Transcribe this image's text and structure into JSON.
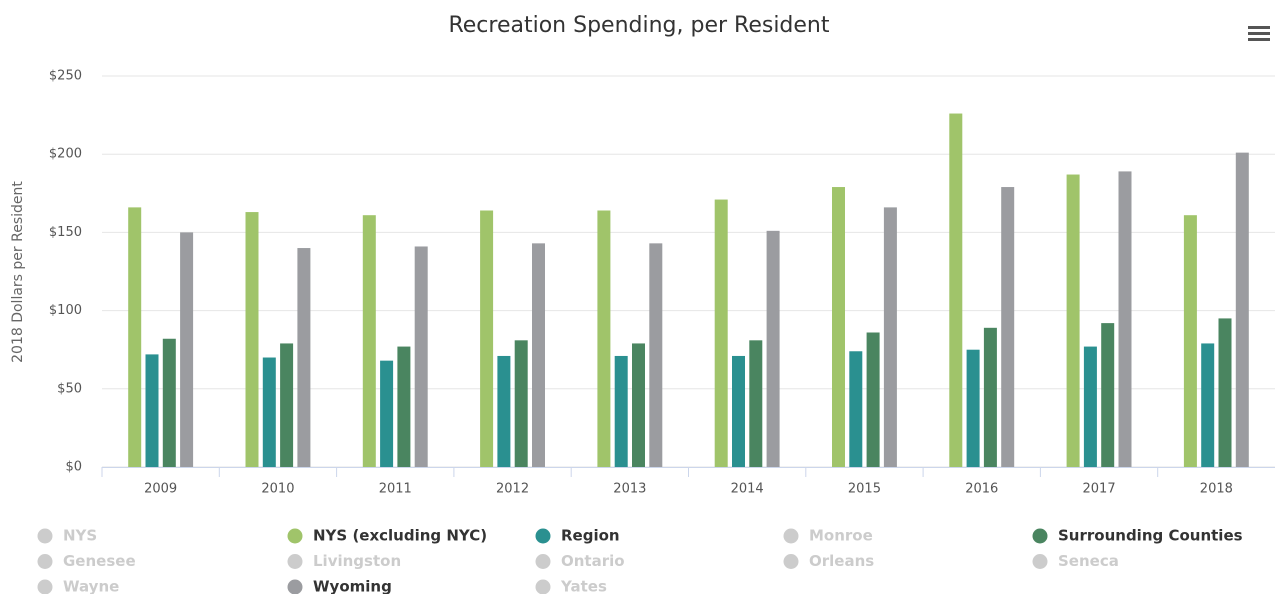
{
  "chart_data": {
    "type": "bar",
    "title": "Recreation Spending, per Resident",
    "y_label": "2018 Dollars per Resident",
    "categories": [
      "2009",
      "2010",
      "2011",
      "2012",
      "2013",
      "2014",
      "2015",
      "2016",
      "2017",
      "2018"
    ],
    "ylim": [
      0,
      250
    ],
    "yticks": [
      {
        "value": 0,
        "label": "$0"
      },
      {
        "value": 50,
        "label": "$50"
      },
      {
        "value": 100,
        "label": "$100"
      },
      {
        "value": 150,
        "label": "$150"
      },
      {
        "value": 200,
        "label": "$200"
      },
      {
        "value": 250,
        "label": "$250"
      }
    ],
    "grid": true,
    "legend": "bottom",
    "series": [
      {
        "name": "NYS",
        "color": "#cccccc",
        "visible": false
      },
      {
        "name": "NYS (excluding NYC)",
        "color": "#a0c46a",
        "visible": true,
        "values": [
          166,
          163,
          161,
          164,
          164,
          171,
          179,
          226,
          187,
          161
        ]
      },
      {
        "name": "Region",
        "color": "#2a9090",
        "visible": true,
        "values": [
          72,
          70,
          68,
          71,
          71,
          71,
          74,
          75,
          77,
          79
        ]
      },
      {
        "name": "Monroe",
        "color": "#cccccc",
        "visible": false
      },
      {
        "name": "Surrounding Counties",
        "color": "#4a8560",
        "visible": true,
        "values": [
          82,
          79,
          77,
          81,
          79,
          81,
          86,
          89,
          92,
          95
        ]
      },
      {
        "name": "Genesee",
        "color": "#cccccc",
        "visible": false
      },
      {
        "name": "Livingston",
        "color": "#cccccc",
        "visible": false
      },
      {
        "name": "Ontario",
        "color": "#cccccc",
        "visible": false
      },
      {
        "name": "Orleans",
        "color": "#cccccc",
        "visible": false
      },
      {
        "name": "Seneca",
        "color": "#cccccc",
        "visible": false
      },
      {
        "name": "Wayne",
        "color": "#cccccc",
        "visible": false
      },
      {
        "name": "Wyoming",
        "color": "#9b9ca0",
        "visible": true,
        "values": [
          150,
          140,
          141,
          143,
          143,
          151,
          166,
          179,
          189,
          201
        ]
      },
      {
        "name": "Yates",
        "color": "#cccccc",
        "visible": false
      }
    ]
  }
}
